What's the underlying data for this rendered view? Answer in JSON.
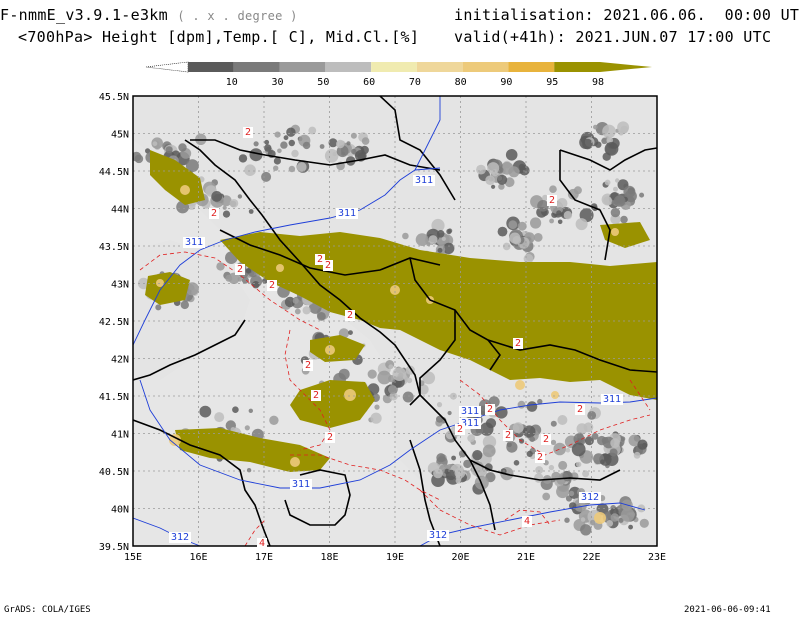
{
  "header": {
    "model": "F-nmmE_v3.9.1-e3km",
    "units_note": "( . x . degree )",
    "fields": "<700hPa> Height [dpm],Temp.[ C], Mid.Cl.[%]",
    "init_label": "initialisation:",
    "init_value": "2021.06.06.  00:00 UTC",
    "valid_label": "valid(+41h):",
    "valid_value": "2021.JUN.07 17:00 UTC"
  },
  "colorbar": {
    "ticks": [
      "10",
      "30",
      "50",
      "60",
      "70",
      "80",
      "90",
      "95",
      "98"
    ],
    "colors": [
      "#5a5a5a",
      "#7a7a7a",
      "#9a9a9a",
      "#bdbdbd",
      "#f0ebb0",
      "#efd79a",
      "#edca7a",
      "#e8b33c",
      "#9a9200"
    ]
  },
  "map": {
    "lat_labels": [
      "45.5N",
      "45N",
      "44.5N",
      "44N",
      "43.5N",
      "43N",
      "42.5N",
      "42N",
      "41.5N",
      "41N",
      "40.5N",
      "40N",
      "39.5N"
    ],
    "lon_labels": [
      "15E",
      "16E",
      "17E",
      "18E",
      "19E",
      "20E",
      "21E",
      "22E",
      "23E"
    ],
    "height_contour_labels": [
      "311",
      "311",
      "311",
      "311",
      "311",
      "311",
      "312",
      "312",
      "312",
      "311"
    ],
    "temp_contour_labels": [
      "2",
      "2",
      "2",
      "2",
      "2",
      "2",
      "2",
      "2",
      "2",
      "2",
      "2",
      "2",
      "2",
      "2",
      "2",
      "2",
      "4",
      "4",
      "2",
      "2"
    ],
    "colors": {
      "sea": "#e6e6e6",
      "cloud_heavy": "#9a9200",
      "cloud_mid": "#edca7a",
      "cloud_low": "#9a9a9a",
      "height_contour": "#1f3fd8",
      "temp_contour": "#e02020",
      "coast": "#000000"
    }
  },
  "footer": {
    "left": "GrADS: COLA/IGES",
    "right": "2021-06-06-09:41"
  }
}
